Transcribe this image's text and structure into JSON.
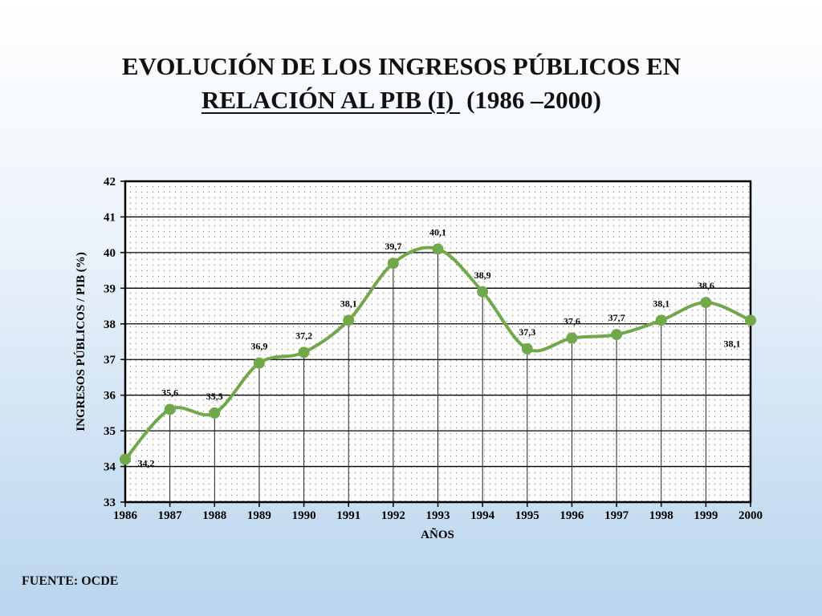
{
  "title": {
    "line1": "EVOLUCIÓN DE LOS INGRESOS PÚBLICOS EN",
    "line2_underlined": "RELACIÓN AL PIB (I) ",
    "line2_rest": "(1986 –2000)"
  },
  "source": "FUENTE: OCDE",
  "colors": {
    "line": "#70a84a",
    "marker": "#70a84a",
    "plot_border": "#000000",
    "grid": "#000000"
  },
  "chart_data": {
    "type": "line",
    "title": "",
    "xlabel": "AÑOS",
    "ylabel": "INGRESOS PÚBLICOS / PIB (%)",
    "x": [
      1986,
      1987,
      1988,
      1989,
      1990,
      1991,
      1992,
      1993,
      1994,
      1995,
      1996,
      1997,
      1998,
      1999,
      2000
    ],
    "series": [
      {
        "values": [
          34.2,
          35.6,
          35.5,
          36.9,
          37.2,
          38.1,
          39.7,
          40.1,
          38.9,
          37.3,
          37.6,
          37.7,
          38.1,
          38.6,
          38.1
        ],
        "labels": [
          "34,2",
          "35,6",
          "35,5",
          "36,9",
          "37,2",
          "38,1",
          "39,7",
          "40,1",
          "38,9",
          "37,3",
          "37,6",
          "37,7",
          "38,1",
          "38,6",
          "38,1"
        ]
      }
    ],
    "ylim": [
      33,
      42
    ],
    "yticks": [
      33,
      34,
      35,
      36,
      37,
      38,
      39,
      40,
      41,
      42
    ],
    "xlim": [
      1986,
      2000
    ],
    "grid": "horizontal major lines; vertical drop lines from each point; dotted plot fill",
    "smooth": true
  }
}
